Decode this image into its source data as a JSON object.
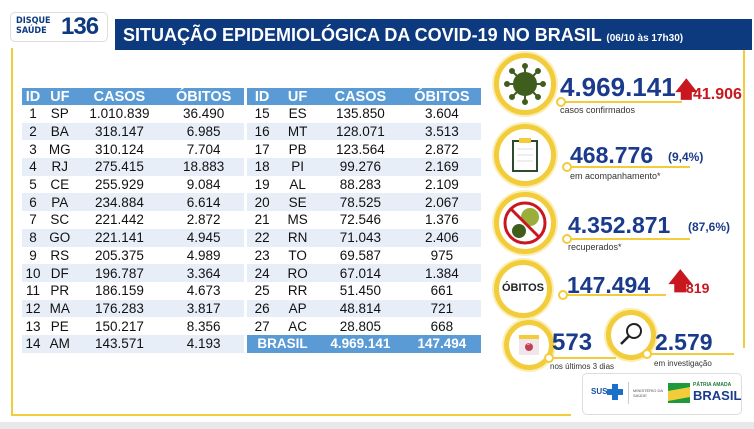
{
  "logo": {
    "line1": "DISQUE",
    "line2": "SAÚDE",
    "number": "136"
  },
  "header": {
    "title": "SITUAÇÃO EPIDEMIOLÓGICA DA COVID-19 NO BRASIL",
    "subtitle": "(06/10 às 17h30)"
  },
  "table": {
    "columns": [
      "ID",
      "UF",
      "CASOS",
      "ÓBITOS"
    ],
    "left": [
      [
        "1",
        "SP",
        "1.010.839",
        "36.490"
      ],
      [
        "2",
        "BA",
        "318.147",
        "6.985"
      ],
      [
        "3",
        "MG",
        "310.124",
        "7.704"
      ],
      [
        "4",
        "RJ",
        "275.415",
        "18.883"
      ],
      [
        "5",
        "CE",
        "255.929",
        "9.084"
      ],
      [
        "6",
        "PA",
        "234.884",
        "6.614"
      ],
      [
        "7",
        "SC",
        "221.442",
        "2.872"
      ],
      [
        "8",
        "GO",
        "221.141",
        "4.945"
      ],
      [
        "9",
        "RS",
        "205.375",
        "4.989"
      ],
      [
        "10",
        "DF",
        "196.787",
        "3.364"
      ],
      [
        "11",
        "PR",
        "186.159",
        "4.673"
      ],
      [
        "12",
        "MA",
        "176.283",
        "3.817"
      ],
      [
        "13",
        "PE",
        "150.217",
        "8.356"
      ],
      [
        "14",
        "AM",
        "143.571",
        "4.193"
      ]
    ],
    "right": [
      [
        "15",
        "ES",
        "135.850",
        "3.604"
      ],
      [
        "16",
        "MT",
        "128.071",
        "3.513"
      ],
      [
        "17",
        "PB",
        "123.564",
        "2.872"
      ],
      [
        "18",
        "PI",
        "99.276",
        "2.169"
      ],
      [
        "19",
        "AL",
        "88.283",
        "2.109"
      ],
      [
        "20",
        "SE",
        "78.525",
        "2.067"
      ],
      [
        "21",
        "MS",
        "72.546",
        "1.376"
      ],
      [
        "22",
        "RN",
        "71.043",
        "2.406"
      ],
      [
        "23",
        "TO",
        "69.587",
        "975"
      ],
      [
        "24",
        "RO",
        "67.014",
        "1.384"
      ],
      [
        "25",
        "RR",
        "51.450",
        "661"
      ],
      [
        "26",
        "AP",
        "48.814",
        "721"
      ],
      [
        "27",
        "AC",
        "28.805",
        "668"
      ]
    ],
    "total": {
      "label": "BRASIL",
      "casos": "4.969.141",
      "obitos": "147.494"
    }
  },
  "stats": {
    "confirmed": {
      "value": "4.969.141",
      "increase": "41.906",
      "label": "casos confirmados",
      "icon": "virus-icon"
    },
    "monitoring": {
      "value": "468.776",
      "pct": "(9,4%)",
      "label": "em acompanhamento*",
      "icon": "clipboard-icon"
    },
    "recovered": {
      "value": "4.352.871",
      "pct": "(87,6%)",
      "label": "recuperados*",
      "icon": "virus-crossed-icon"
    },
    "deaths": {
      "badge": "ÓBITOS",
      "value": "147.494",
      "increase": "819"
    },
    "recent": {
      "value": "573",
      "label": "nos últimos 3 dias",
      "calendar_day": "3"
    },
    "investigation": {
      "value": "2.579",
      "label": "em investigação"
    }
  },
  "footer": {
    "sus": "SUS",
    "ministry": "MINISTÉRIO DA SAÚDE",
    "gov_line1": "PÁTRIA AMADA",
    "gov_line2": "BRASIL"
  },
  "colors": {
    "navy": "#0d3a7f",
    "table_header": "#5b9bd5",
    "accent_yellow": "#f2cc3a",
    "increase_red": "#c8171e",
    "virus_green": "#3f5e1e"
  }
}
